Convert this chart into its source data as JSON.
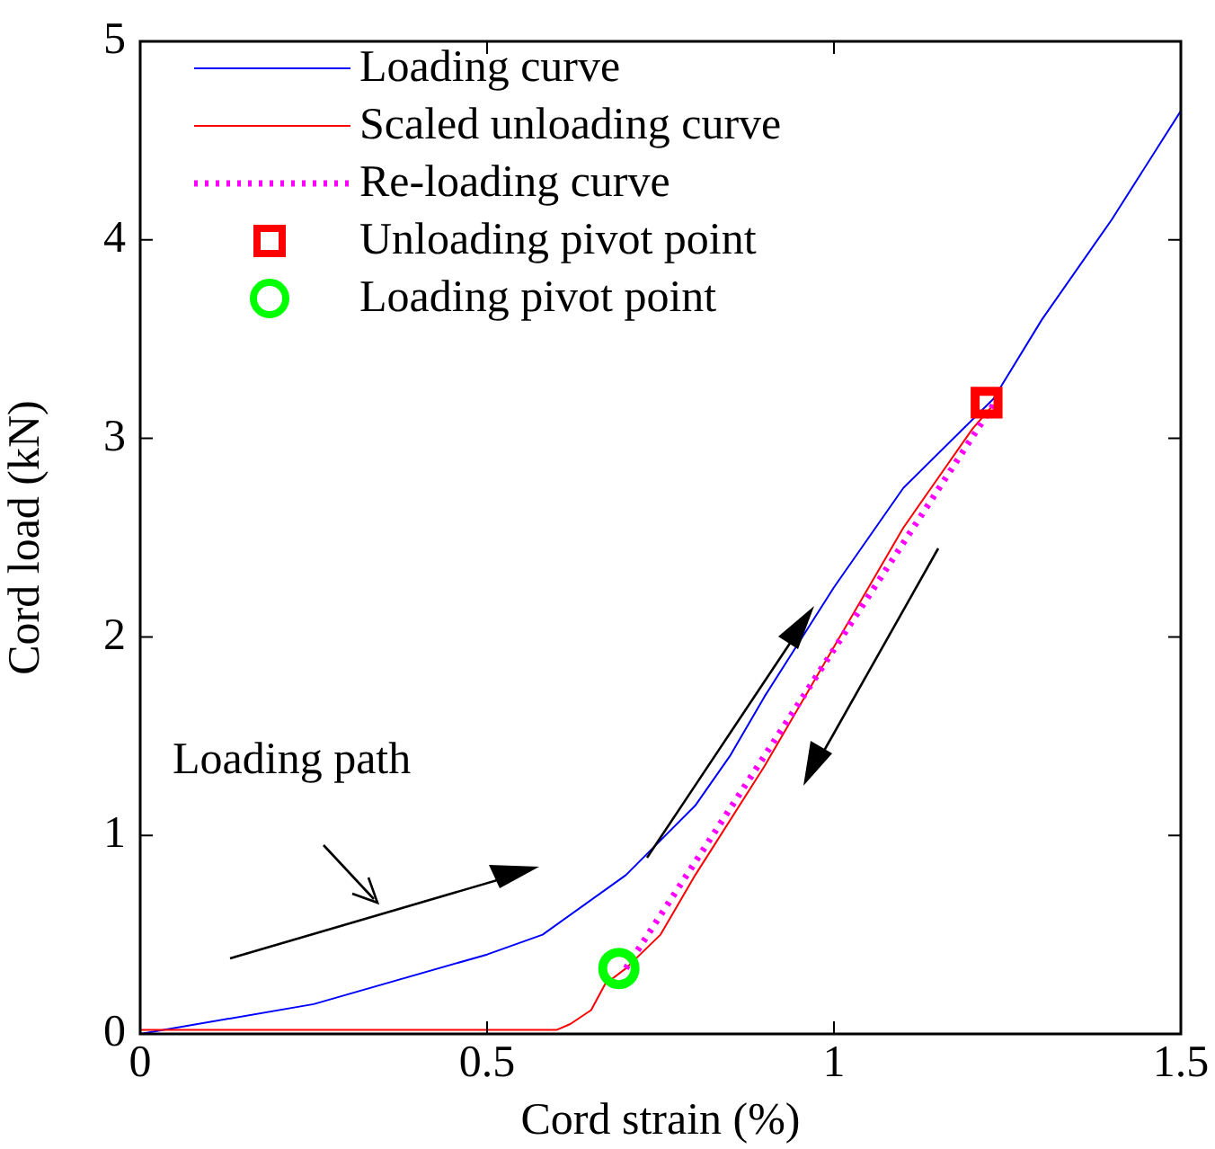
{
  "chart_data": {
    "type": "line",
    "xlabel": "Cord strain (%)",
    "ylabel": "Cord load (kN)",
    "xlim": [
      0,
      1.5
    ],
    "xticks": [
      0,
      0.5,
      1,
      1.5
    ],
    "ylim": [
      0,
      5
    ],
    "yticks": [
      0,
      1,
      2,
      3,
      4,
      5
    ],
    "grid": false,
    "legend": "top left",
    "annotations": [
      "Loading path"
    ],
    "series": [
      {
        "name": "Loading curve",
        "type": "line",
        "color": "#0000ff",
        "line_style": "solid",
        "marker": "none",
        "x": [
          0,
          0.25,
          0.5,
          0.58,
          0.7,
          0.8,
          0.85,
          0.9,
          1.0,
          1.1,
          1.23,
          1.3,
          1.4,
          1.5
        ],
        "values": [
          0,
          0.15,
          0.4,
          0.5,
          0.8,
          1.15,
          1.4,
          1.7,
          2.25,
          2.75,
          3.2,
          3.6,
          4.1,
          4.65
        ]
      },
      {
        "name": "Scaled unloading curve",
        "type": "line",
        "color": "#ff0000",
        "line_style": "solid",
        "marker": "none",
        "x": [
          0,
          0.6,
          0.62,
          0.65,
          0.67,
          0.7,
          0.75,
          0.8,
          0.9,
          1.0,
          1.1,
          1.15,
          1.2,
          1.23
        ],
        "values": [
          0.02,
          0.02,
          0.05,
          0.12,
          0.25,
          0.33,
          0.5,
          0.8,
          1.35,
          1.95,
          2.55,
          2.8,
          3.05,
          3.17
        ]
      },
      {
        "name": "Re-loading curve",
        "type": "line",
        "color": "#ff00ff",
        "line_style": "dotted",
        "marker": "none",
        "x": [
          0.7,
          1.23
        ],
        "values": [
          0.33,
          3.17
        ]
      },
      {
        "name": "Unloading pivot point",
        "type": "scatter",
        "color": "#ff0000",
        "marker": "square",
        "x": [
          1.22
        ],
        "values": [
          3.18
        ]
      },
      {
        "name": "Loading pivot point",
        "type": "scatter",
        "color": "#00ff00",
        "marker": "circle",
        "x": [
          0.69
        ],
        "values": [
          0.33
        ]
      }
    ]
  }
}
